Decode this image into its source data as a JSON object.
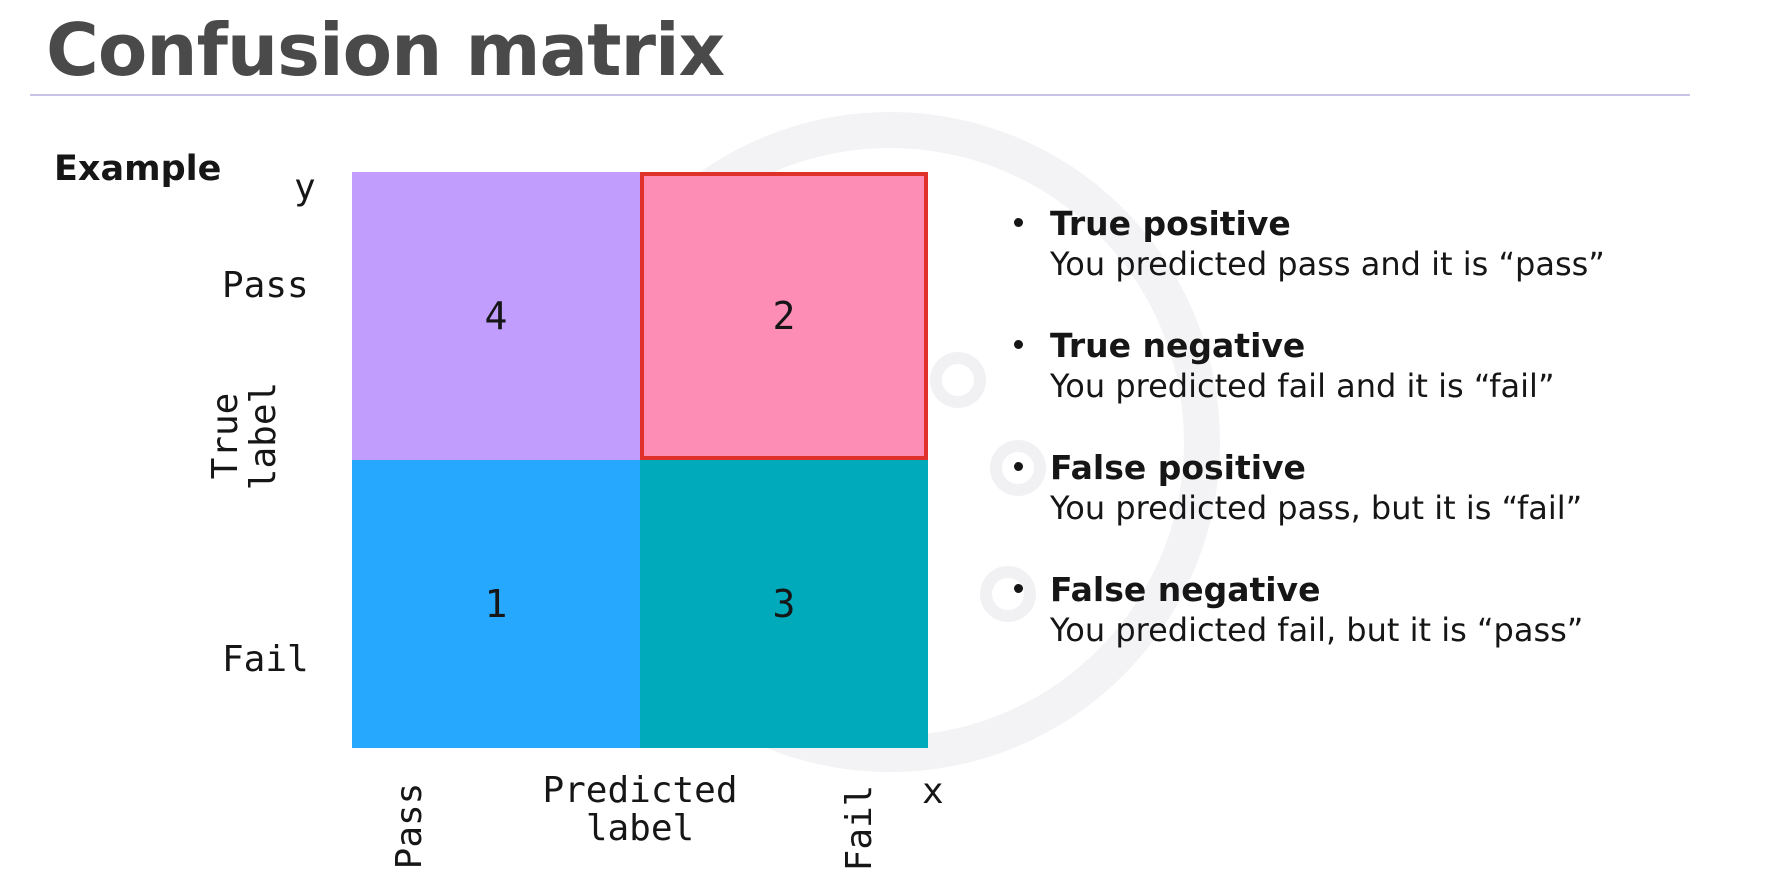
{
  "title": "Confusion matrix",
  "example_label": "Example",
  "colors": {
    "title_text": "#4a4a4a",
    "rule": "#c9c4e6",
    "highlight_border": "#e0302a"
  },
  "chart_data": {
    "type": "heatmap",
    "y_axis_letter": "y",
    "x_axis_letter": "x",
    "ylabel": "True\nlabel",
    "xlabel": "Predicted\nlabel",
    "row_labels": [
      "Pass",
      "Fail"
    ],
    "col_labels": [
      "Pass",
      "Fail"
    ],
    "values": [
      [
        4,
        2
      ],
      [
        1,
        3
      ]
    ],
    "cell_colors": [
      [
        "#c19efe",
        "#fd8db5"
      ],
      [
        "#27a8ff",
        "#00aabb"
      ]
    ],
    "highlighted_cell": [
      0,
      1
    ]
  },
  "bullets": [
    {
      "term": "True positive",
      "description": "You predicted pass and it is “pass”"
    },
    {
      "term": "True negative",
      "description": "You predicted fail and it is “fail”"
    },
    {
      "term": "False positive",
      "description": "You predicted pass, but it is “fail”"
    },
    {
      "term": "False negative",
      "description": "You predicted fail, but it is “pass”"
    }
  ]
}
